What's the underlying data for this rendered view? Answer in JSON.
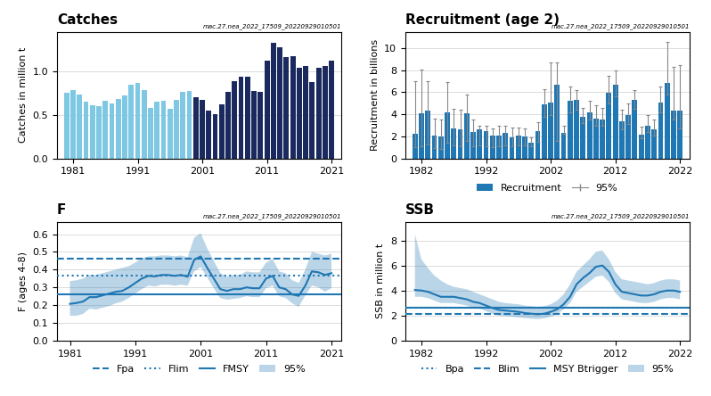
{
  "chart_data": [
    {
      "type": "bar",
      "title": "Catches",
      "ylabel": "Catches in million t",
      "x": [
        1980,
        1981,
        1982,
        1983,
        1984,
        1985,
        1986,
        1987,
        1988,
        1989,
        1990,
        1991,
        1992,
        1993,
        1994,
        1995,
        1996,
        1997,
        1998,
        1999,
        2000,
        2001,
        2002,
        2003,
        2004,
        2005,
        2006,
        2007,
        2008,
        2009,
        2010,
        2011,
        2012,
        2013,
        2014,
        2015,
        2016,
        2017,
        2018,
        2019,
        2020,
        2021
      ],
      "series": [
        {
          "type": "bar",
          "values": [
            0.75,
            0.78,
            0.73,
            0.65,
            0.61,
            0.6,
            0.66,
            0.63,
            0.68,
            0.72,
            0.84,
            0.86,
            0.78,
            0.58,
            0.65,
            0.66,
            0.57,
            0.67,
            0.76,
            0.77,
            0.7,
            0.67,
            0.55,
            0.51,
            0.62,
            0.76,
            0.88,
            0.93,
            0.93,
            0.77,
            0.76,
            1.12,
            1.32,
            1.27,
            1.16,
            1.17,
            1.04,
            1.06,
            0.87,
            1.04,
            1.06,
            1.12
          ],
          "colors": [
            "#7EC8E3",
            "#7EC8E3",
            "#7EC8E3",
            "#7EC8E3",
            "#7EC8E3",
            "#7EC8E3",
            "#7EC8E3",
            "#7EC8E3",
            "#7EC8E3",
            "#7EC8E3",
            "#7EC8E3",
            "#7EC8E3",
            "#7EC8E3",
            "#7EC8E3",
            "#7EC8E3",
            "#7EC8E3",
            "#7EC8E3",
            "#7EC8E3",
            "#7EC8E3",
            "#7EC8E3",
            "#1B2A5E",
            "#1B2A5E",
            "#1B2A5E",
            "#1B2A5E",
            "#1B2A5E",
            "#1B2A5E",
            "#1B2A5E",
            "#1B2A5E",
            "#1B2A5E",
            "#1B2A5E",
            "#1B2A5E",
            "#1B2A5E",
            "#1B2A5E",
            "#1B2A5E",
            "#1B2A5E",
            "#1B2A5E",
            "#1B2A5E",
            "#1B2A5E",
            "#1B2A5E",
            "#1B2A5E",
            "#1B2A5E",
            "#1B2A5E"
          ]
        }
      ],
      "xlim": [
        1978.5,
        2022.5
      ],
      "xticks": [
        1981,
        1991,
        2001,
        2011,
        2021
      ],
      "ylim": [
        0,
        1.45
      ],
      "yticks": [
        0.0,
        0.5,
        1.0
      ],
      "grid": "y",
      "annotations": [
        "mac.27.nea_2022_17509_20220929010501"
      ]
    },
    {
      "type": "bar",
      "title": "Recruitment (age 2)",
      "ylabel": "Recruitment in billions",
      "x": [
        1981,
        1982,
        1983,
        1984,
        1985,
        1986,
        1987,
        1988,
        1989,
        1990,
        1991,
        1992,
        1993,
        1994,
        1995,
        1996,
        1997,
        1998,
        1999,
        2000,
        2001,
        2002,
        2003,
        2004,
        2005,
        2006,
        2007,
        2008,
        2009,
        2010,
        2011,
        2012,
        2013,
        2014,
        2015,
        2016,
        2017,
        2018,
        2019,
        2020,
        2021,
        2022
      ],
      "series": [
        {
          "name": "Recruitment",
          "type": "bar",
          "values": [
            2.2,
            4.1,
            4.3,
            2.1,
            2.0,
            4.2,
            2.7,
            2.6,
            4.1,
            2.4,
            2.6,
            2.5,
            2.1,
            2.1,
            2.3,
            1.95,
            2.05,
            2.0,
            1.4,
            2.5,
            4.9,
            5.1,
            6.65,
            2.3,
            5.2,
            5.3,
            3.75,
            4.15,
            3.6,
            3.5,
            5.95,
            6.7,
            3.35,
            3.9,
            5.3,
            2.15,
            3.0,
            2.65,
            5.05,
            6.85,
            4.35,
            4.35
          ]
        },
        {
          "name": "95%",
          "type": "errorbar",
          "color": "#888888",
          "low": [
            1.0,
            1.1,
            1.3,
            0.9,
            0.85,
            1.4,
            1.2,
            1.1,
            1.6,
            1.1,
            1.2,
            1.1,
            1.0,
            1.1,
            1.2,
            1.1,
            1.15,
            1.15,
            1.1,
            1.5,
            3.8,
            3.9,
            1.6,
            2.2,
            4.2,
            4.4,
            3.2,
            3.5,
            3.0,
            3.0,
            5.0,
            5.6,
            2.6,
            3.1,
            4.5,
            1.8,
            2.4,
            2.1,
            4.2,
            5.8,
            3.5,
            2.7
          ],
          "high": [
            7.0,
            8.1,
            7.0,
            3.6,
            3.5,
            6.9,
            4.5,
            4.4,
            5.8,
            3.5,
            3.0,
            3.0,
            2.7,
            3.0,
            3.0,
            2.8,
            2.8,
            2.7,
            1.9,
            3.3,
            6.3,
            8.7,
            8.7,
            3.0,
            6.5,
            6.2,
            4.6,
            5.2,
            4.8,
            4.6,
            7.5,
            8.0,
            4.4,
            5.0,
            6.2,
            2.9,
            3.9,
            3.5,
            6.5,
            10.6,
            8.3,
            8.5
          ]
        }
      ],
      "xlim": [
        1979.5,
        2023.5
      ],
      "xticks": [
        1982,
        1992,
        2002,
        2012,
        2022
      ],
      "ylim": [
        0,
        11.5
      ],
      "yticks": [
        0,
        2,
        4,
        6,
        8,
        10
      ],
      "grid": "y",
      "legend": "below",
      "annotations": [
        "mac.27.nea_2022_17509_20220929010501"
      ]
    },
    {
      "type": "line",
      "title": "F",
      "ylabel": "F (ages 4-8)",
      "x": [
        1981,
        1982,
        1983,
        1984,
        1985,
        1986,
        1987,
        1988,
        1989,
        1990,
        1991,
        1992,
        1993,
        1994,
        1995,
        1996,
        1997,
        1998,
        1999,
        2000,
        2001,
        2002,
        2003,
        2004,
        2005,
        2006,
        2007,
        2008,
        2009,
        2010,
        2011,
        2012,
        2013,
        2014,
        2015,
        2016,
        2017,
        2018,
        2019,
        2020,
        2021
      ],
      "series": [
        {
          "type": "line",
          "values": [
            0.207,
            0.212,
            0.22,
            0.245,
            0.245,
            0.255,
            0.265,
            0.275,
            0.28,
            0.3,
            0.325,
            0.35,
            0.365,
            0.362,
            0.37,
            0.37,
            0.365,
            0.37,
            0.36,
            0.455,
            0.475,
            0.41,
            0.35,
            0.29,
            0.28,
            0.29,
            0.29,
            0.3,
            0.295,
            0.295,
            0.35,
            0.365,
            0.3,
            0.29,
            0.26,
            0.252,
            0.31,
            0.39,
            0.385,
            0.37,
            0.38
          ]
        },
        {
          "name": "Fpa",
          "type": "hline",
          "value": 0.46,
          "line_style": "dashed"
        },
        {
          "name": "Flim",
          "type": "hline",
          "value": 0.365,
          "line_style": "dotted"
        },
        {
          "name": "FMSY",
          "type": "hline",
          "value": 0.26,
          "line_style": "solid"
        },
        {
          "name": "95%",
          "type": "band",
          "low": [
            0.14,
            0.14,
            0.15,
            0.18,
            0.175,
            0.185,
            0.195,
            0.21,
            0.22,
            0.24,
            0.265,
            0.29,
            0.31,
            0.305,
            0.315,
            0.315,
            0.31,
            0.315,
            0.31,
            0.39,
            0.415,
            0.355,
            0.295,
            0.24,
            0.23,
            0.235,
            0.24,
            0.25,
            0.245,
            0.245,
            0.295,
            0.31,
            0.25,
            0.24,
            0.21,
            0.19,
            0.255,
            0.31,
            0.3,
            0.275,
            0.295
          ],
          "high": [
            0.335,
            0.34,
            0.35,
            0.37,
            0.37,
            0.38,
            0.39,
            0.4,
            0.41,
            0.42,
            0.44,
            0.465,
            0.475,
            0.475,
            0.48,
            0.48,
            0.475,
            0.48,
            0.47,
            0.58,
            0.605,
            0.52,
            0.45,
            0.38,
            0.36,
            0.37,
            0.37,
            0.39,
            0.385,
            0.385,
            0.44,
            0.46,
            0.39,
            0.38,
            0.34,
            0.325,
            0.4,
            0.5,
            0.49,
            0.48,
            0.49
          ]
        }
      ],
      "xlim": [
        1979,
        2022.5
      ],
      "xticks": [
        1981,
        1991,
        2001,
        2011,
        2021
      ],
      "ylim": [
        0,
        0.67
      ],
      "yticks": [
        0.0,
        0.1,
        0.2,
        0.3,
        0.4,
        0.5,
        0.6
      ],
      "grid": "y",
      "legend": "below",
      "annotations": [
        "mac.27.nea_2022_17509_20220929010501"
      ]
    },
    {
      "type": "line",
      "title": "SSB",
      "ylabel": "SSB in million t",
      "x": [
        1981,
        1982,
        1983,
        1984,
        1985,
        1986,
        1987,
        1988,
        1989,
        1990,
        1991,
        1992,
        1993,
        1994,
        1995,
        1996,
        1997,
        1998,
        1999,
        2000,
        2001,
        2002,
        2003,
        2004,
        2005,
        2006,
        2007,
        2008,
        2009,
        2010,
        2011,
        2012,
        2013,
        2014,
        2015,
        2016,
        2017,
        2018,
        2019,
        2020,
        2021,
        2022
      ],
      "series": [
        {
          "type": "line",
          "values": [
            4.05,
            4.0,
            3.9,
            3.7,
            3.5,
            3.5,
            3.5,
            3.4,
            3.3,
            3.1,
            3.0,
            2.8,
            2.6,
            2.45,
            2.4,
            2.35,
            2.3,
            2.2,
            2.15,
            2.1,
            2.15,
            2.3,
            2.5,
            2.9,
            3.5,
            4.5,
            5.0,
            5.4,
            5.9,
            6.0,
            5.5,
            4.5,
            3.9,
            3.8,
            3.7,
            3.6,
            3.6,
            3.7,
            3.9,
            4.0,
            4.0,
            3.9
          ]
        },
        {
          "name": "Bpa",
          "type": "hline",
          "value": 2.6,
          "line_style": "dotted"
        },
        {
          "name": "Blim",
          "type": "hline",
          "value": 2.1,
          "line_style": "dashed"
        },
        {
          "name": "MSY Btrigger",
          "type": "hline",
          "value": 2.6,
          "line_style": "solid"
        },
        {
          "name": "95%",
          "type": "band",
          "low": [
            3.5,
            3.5,
            3.4,
            3.2,
            3.0,
            3.0,
            3.0,
            2.9,
            2.8,
            2.6,
            2.55,
            2.35,
            2.15,
            2.0,
            1.95,
            1.9,
            1.85,
            1.8,
            1.75,
            1.72,
            1.78,
            1.9,
            2.1,
            2.5,
            3.0,
            3.9,
            4.3,
            4.7,
            5.1,
            5.2,
            4.7,
            3.8,
            3.3,
            3.2,
            3.1,
            3.0,
            3.0,
            3.1,
            3.3,
            3.4,
            3.4,
            3.3
          ],
          "high": [
            8.5,
            6.5,
            5.8,
            5.2,
            4.8,
            4.5,
            4.3,
            4.2,
            4.1,
            3.9,
            3.7,
            3.5,
            3.3,
            3.1,
            3.0,
            2.95,
            2.9,
            2.8,
            2.75,
            2.7,
            2.75,
            2.9,
            3.2,
            3.7,
            4.5,
            5.5,
            6.0,
            6.5,
            7.1,
            7.2,
            6.5,
            5.5,
            4.9,
            4.8,
            4.7,
            4.6,
            4.5,
            4.6,
            4.8,
            4.9,
            4.9,
            4.8
          ]
        }
      ],
      "xlim": [
        1979.5,
        2023.5
      ],
      "xticks": [
        1982,
        1992,
        2002,
        2012,
        2022
      ],
      "ylim": [
        0,
        9.5
      ],
      "yticks": [
        0,
        2,
        4,
        6,
        8
      ],
      "grid": "y",
      "legend": "below",
      "annotations": [
        "mac.27.nea_2022_17509_20220929010501"
      ]
    }
  ]
}
